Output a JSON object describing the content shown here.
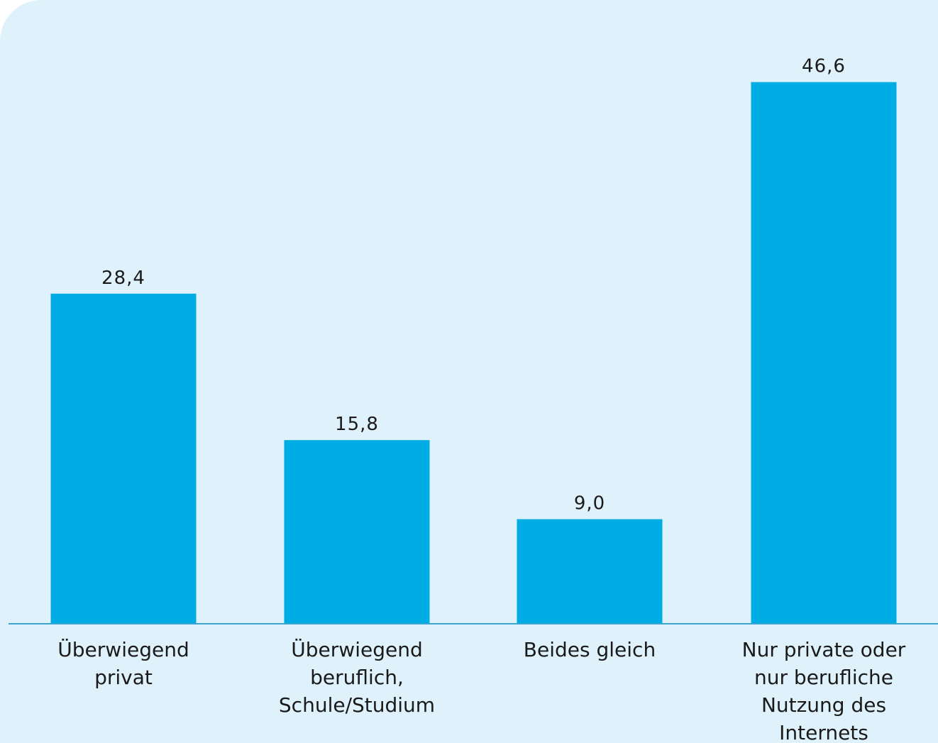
{
  "chart_data": {
    "type": "bar",
    "categories": [
      [
        "Überwiegend",
        "privat"
      ],
      [
        "Überwiegend",
        "beruflich,",
        "Schule/Studium"
      ],
      [
        "Beides gleich"
      ],
      [
        "Nur private oder",
        "nur berufliche",
        "Nutzung des",
        "Internets"
      ]
    ],
    "values": [
      28.4,
      15.8,
      9.0,
      46.6
    ],
    "value_labels": [
      "28,4",
      "15,8",
      "9,0",
      "46,6"
    ],
    "title": "",
    "xlabel": "",
    "ylabel": "",
    "ylim": [
      0,
      50
    ],
    "grid": false,
    "colors": {
      "bar": "#00ace4",
      "axis": "#3aa6cf",
      "background": "#dff2fc"
    }
  }
}
